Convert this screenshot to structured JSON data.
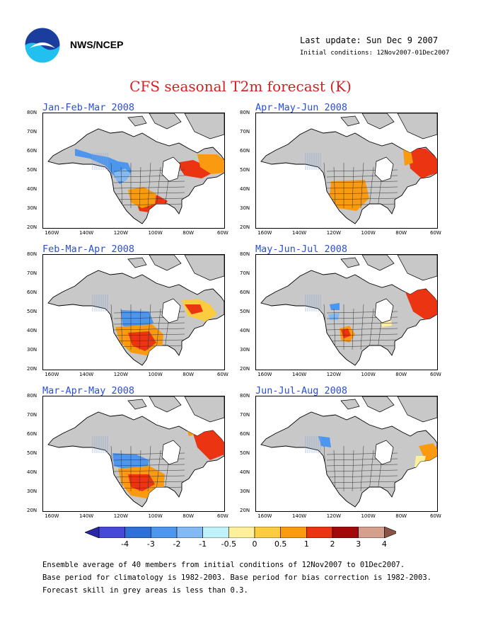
{
  "header": {
    "org": "NWS/NCEP",
    "last_update": "Last update: Sun Dec 9 2007",
    "initial_conditions": "Initial conditions: 12Nov2007-01Dec2007",
    "title": "CFS seasonal T2m forecast (K)"
  },
  "axes": {
    "lat_labels": [
      "80N",
      "70N",
      "60N",
      "50N",
      "40N",
      "30N",
      "20N"
    ],
    "lon_labels": [
      "160W",
      "140W",
      "120W",
      "100W",
      "80W",
      "60W"
    ]
  },
  "panels": [
    {
      "title": "Jan-Feb-Mar 2008"
    },
    {
      "title": "Apr-May-Jun 2008"
    },
    {
      "title": "Feb-Mar-Apr 2008"
    },
    {
      "title": "May-Jun-Jul 2008"
    },
    {
      "title": "Mar-Apr-May 2008"
    },
    {
      "title": "Jun-Jul-Aug 2008"
    }
  ],
  "colorbar": {
    "labels": [
      "-4",
      "-3",
      "-2",
      "-1",
      "-0.5",
      "0",
      "0.5",
      "1",
      "2",
      "3",
      "4"
    ],
    "colors": [
      "#2a2aa8",
      "#4848d8",
      "#2e6fd8",
      "#4c96ee",
      "#84baf4",
      "#bff2f8",
      "#fff09c",
      "#fccc40",
      "#f99a10",
      "#ea3412",
      "#a20a0a",
      "#d4a08c",
      "#8a5444"
    ]
  },
  "footer": {
    "line1": "Ensemble average of 40 members from initial conditions of 12Nov2007 to 01Dec2007.",
    "line2": "Base period for climatology is 1982-2003. Base period for bias correction is 1982-2003.",
    "line3": "Forecast skill in grey areas is less than 0.3."
  }
}
